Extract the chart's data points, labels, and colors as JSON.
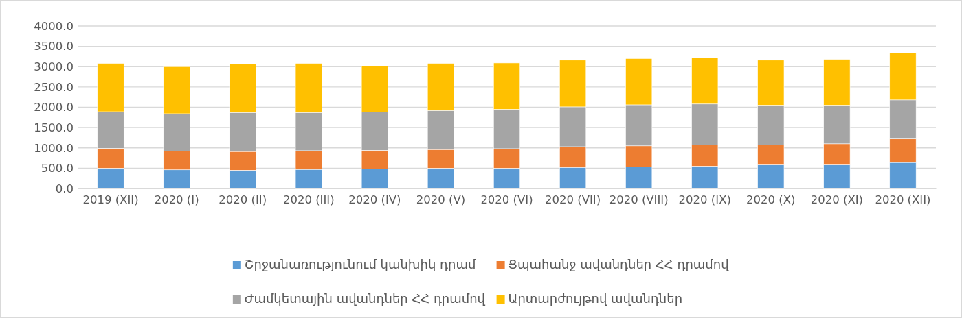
{
  "chart_data": {
    "type": "bar",
    "stacked": true,
    "categories": [
      "2019 (XII)",
      "2020 (I)",
      "2020 (II)",
      "2020 (III)",
      "2020 (IV)",
      "2020 (V)",
      "2020 (VI)",
      "2020 (VII)",
      "2020 (VIII)",
      "2020 (IX)",
      "2020 (X)",
      "2020 (XI)",
      "2020 (XII)"
    ],
    "series": [
      {
        "name": "Շրջանառությունում կանխիկ դրամ",
        "color": "#5b9bd5",
        "values": [
          500,
          460,
          450,
          470,
          480,
          500,
          500,
          520,
          530,
          550,
          580,
          580,
          640
        ]
      },
      {
        "name": "Ցպահանջ ավանդներ ՀՀ դրամով",
        "color": "#ed7d31",
        "values": [
          490,
          460,
          460,
          460,
          460,
          460,
          480,
          510,
          520,
          520,
          490,
          520,
          580
        ]
      },
      {
        "name": "Ժամկետային  ավանդներ ՀՀ դրամով",
        "color": "#a5a5a5",
        "values": [
          900,
          920,
          960,
          940,
          940,
          960,
          970,
          980,
          1010,
          1010,
          980,
          950,
          960
        ]
      },
      {
        "name": "Արտարժույթով ավանդներ",
        "color": "#ffc000",
        "values": [
          1190,
          1160,
          1190,
          1210,
          1130,
          1160,
          1140,
          1150,
          1140,
          1140,
          1110,
          1130,
          1160
        ]
      }
    ],
    "ylim": [
      0,
      4000
    ],
    "yticks": [
      {
        "value": 0,
        "label": "0.0"
      },
      {
        "value": 500,
        "label": "500.0"
      },
      {
        "value": 1000,
        "label": "1000.0"
      },
      {
        "value": 1500,
        "label": "1500.0"
      },
      {
        "value": 2000,
        "label": "2000.0"
      },
      {
        "value": 2500,
        "label": "2500.0"
      },
      {
        "value": 3000,
        "label": "3000.0"
      },
      {
        "value": 3500,
        "label": "3500.0"
      },
      {
        "value": 4000,
        "label": "4000.0"
      }
    ],
    "grid": "y",
    "legend": "bottom"
  }
}
